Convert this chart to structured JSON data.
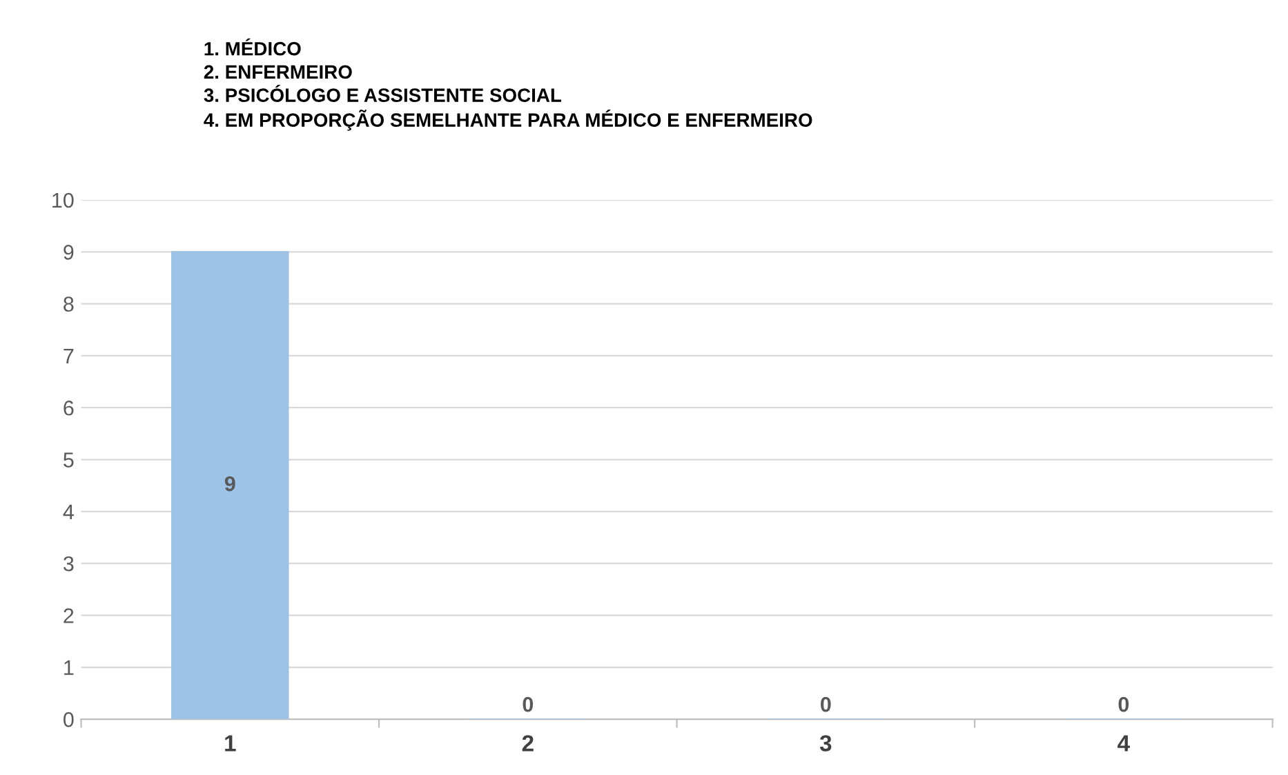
{
  "chart_data": {
    "type": "bar",
    "annotations": [
      "1. MÉDICO",
      "2. ENFERMEIRO",
      "3. PSICÓLOGO E ASSISTENTE SOCIAL",
      "4. EM PROPORÇÃO SEMELHANTE PARA MÉDICO E ENFERMEIRO"
    ],
    "categories": [
      "1",
      "2",
      "3",
      "4"
    ],
    "values": [
      9,
      0,
      0,
      0
    ],
    "color": "#9dc3e6",
    "ylim": [
      0,
      10
    ],
    "yticks": [
      0,
      1,
      2,
      3,
      4,
      5,
      6,
      7,
      8,
      9,
      10
    ],
    "grid": "y",
    "data_labels": true
  }
}
